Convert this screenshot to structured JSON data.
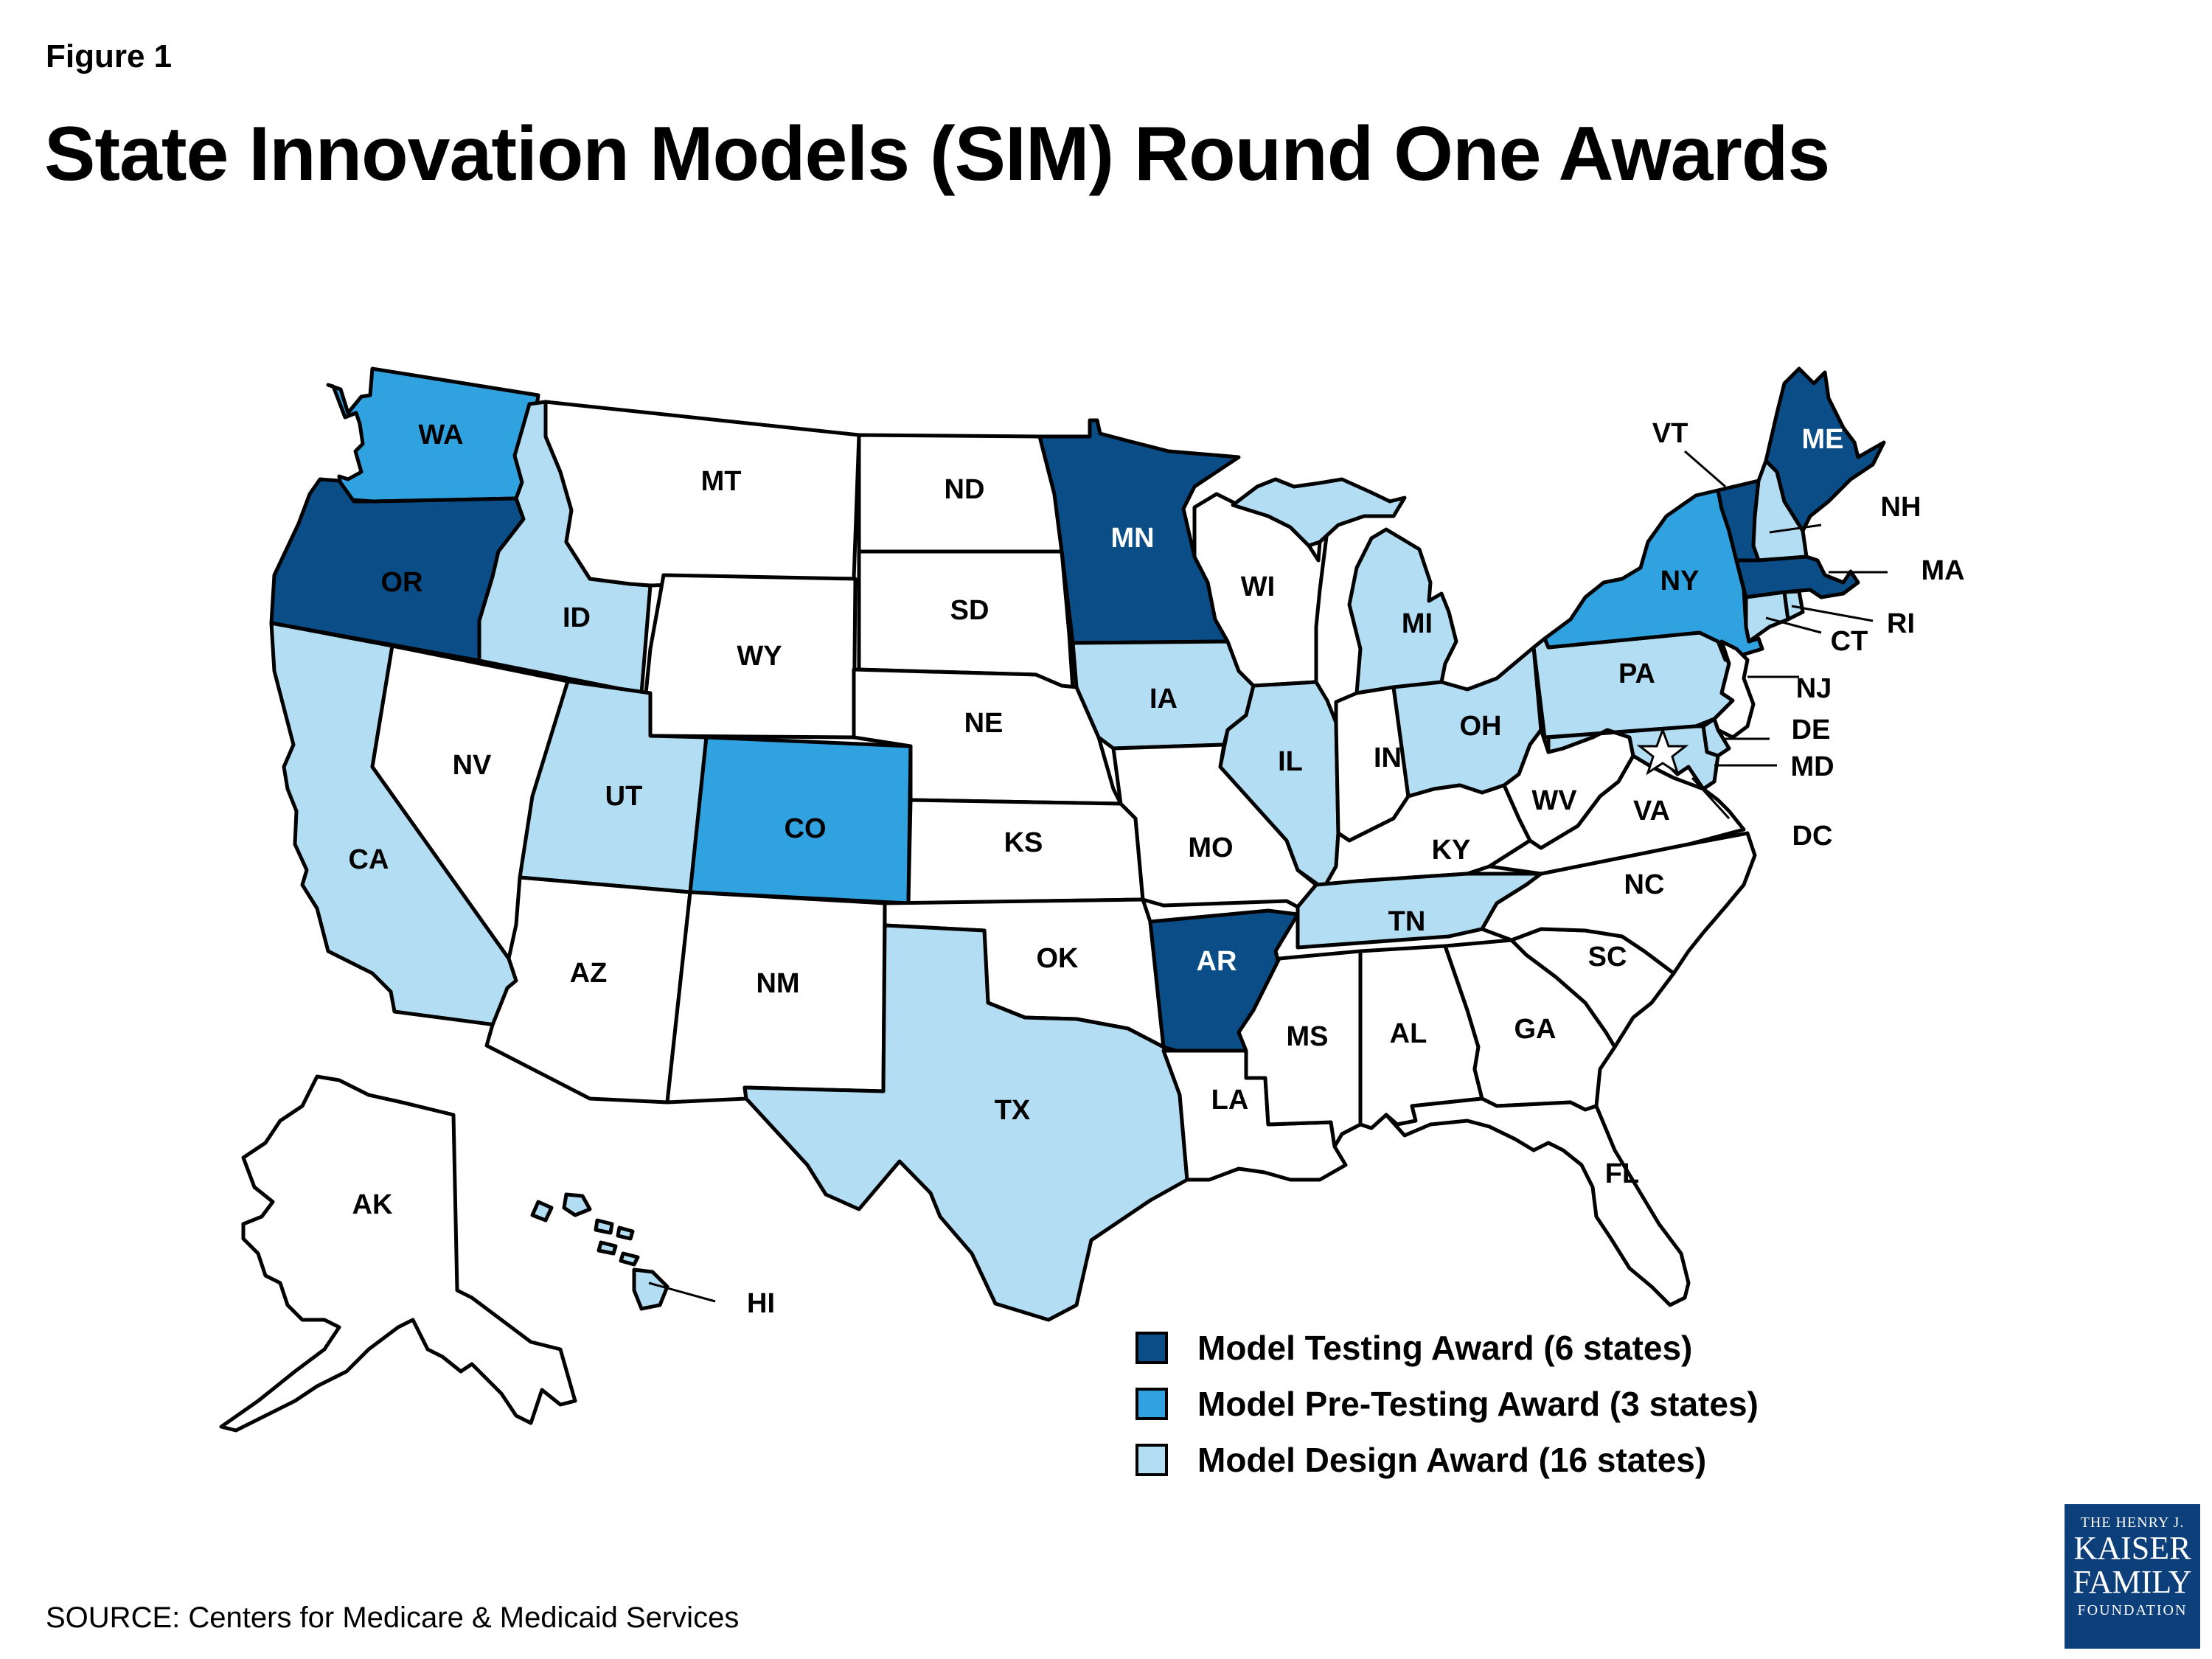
{
  "figure_label": "Figure 1",
  "title": "State Innovation Models (SIM) Round One Awards",
  "source": "SOURCE: Centers for Medicare & Medicaid Services",
  "logo": {
    "line1": "THE HENRY J.",
    "line2": "KAISER",
    "line3": "FAMILY",
    "line4": "FOUNDATION"
  },
  "colors": {
    "model_testing": "#0b4d87",
    "model_pre_testing": "#31a2e0",
    "model_design": "#b3ddf2",
    "none": "#ffffff"
  },
  "legend": [
    {
      "key": "model_testing",
      "label": "Model Testing Award (6 states)"
    },
    {
      "key": "model_pre_testing",
      "label": "Model Pre-Testing Award (3 states)"
    },
    {
      "key": "model_design",
      "label": "Model Design Award (16 states)"
    }
  ],
  "states": {
    "WA": {
      "label": "WA",
      "award": "model_pre_testing"
    },
    "OR": {
      "label": "OR",
      "award": "model_testing"
    },
    "CA": {
      "label": "CA",
      "award": "model_design"
    },
    "ID": {
      "label": "ID",
      "award": "model_design"
    },
    "NV": {
      "label": "NV",
      "award": "none"
    },
    "MT": {
      "label": "MT",
      "award": "none"
    },
    "WY": {
      "label": "WY",
      "award": "none"
    },
    "UT": {
      "label": "UT",
      "award": "model_design"
    },
    "AZ": {
      "label": "AZ",
      "award": "none"
    },
    "CO": {
      "label": "CO",
      "award": "model_pre_testing"
    },
    "NM": {
      "label": "NM",
      "award": "none"
    },
    "ND": {
      "label": "ND",
      "award": "none"
    },
    "SD": {
      "label": "SD",
      "award": "none"
    },
    "NE": {
      "label": "NE",
      "award": "none"
    },
    "KS": {
      "label": "KS",
      "award": "none"
    },
    "OK": {
      "label": "OK",
      "award": "none"
    },
    "TX": {
      "label": "TX",
      "award": "model_design"
    },
    "MN": {
      "label": "MN",
      "award": "model_testing"
    },
    "IA": {
      "label": "IA",
      "award": "model_design"
    },
    "MO": {
      "label": "MO",
      "award": "none"
    },
    "AR": {
      "label": "AR",
      "award": "model_testing"
    },
    "LA": {
      "label": "LA",
      "award": "none"
    },
    "WI": {
      "label": "WI",
      "award": "none"
    },
    "IL": {
      "label": "IL",
      "award": "model_design"
    },
    "MI": {
      "label": "MI",
      "award": "model_design"
    },
    "IN": {
      "label": "IN",
      "award": "none"
    },
    "OH": {
      "label": "OH",
      "award": "model_design"
    },
    "KY": {
      "label": "KY",
      "award": "none"
    },
    "TN": {
      "label": "TN",
      "award": "model_design"
    },
    "MS": {
      "label": "MS",
      "award": "none"
    },
    "AL": {
      "label": "AL",
      "award": "none"
    },
    "GA": {
      "label": "GA",
      "award": "none"
    },
    "FL": {
      "label": "FL",
      "award": "none"
    },
    "SC": {
      "label": "SC",
      "award": "none"
    },
    "NC": {
      "label": "NC",
      "award": "none"
    },
    "VA": {
      "label": "VA",
      "award": "none"
    },
    "WV": {
      "label": "WV",
      "award": "none"
    },
    "PA": {
      "label": "PA",
      "award": "model_design"
    },
    "NY": {
      "label": "NY",
      "award": "model_pre_testing"
    },
    "VT": {
      "label": "VT",
      "award": "model_testing"
    },
    "NH": {
      "label": "NH",
      "award": "model_design"
    },
    "ME": {
      "label": "ME",
      "award": "model_testing"
    },
    "MA": {
      "label": "MA",
      "award": "model_testing"
    },
    "RI": {
      "label": "RI",
      "award": "model_design"
    },
    "CT": {
      "label": "CT",
      "award": "model_design"
    },
    "NJ": {
      "label": "NJ",
      "award": "none"
    },
    "DE": {
      "label": "DE",
      "award": "model_design"
    },
    "MD": {
      "label": "MD",
      "award": "model_design"
    },
    "DC": {
      "label": "DC",
      "award": "none"
    },
    "AK": {
      "label": "AK",
      "award": "none"
    },
    "HI": {
      "label": "HI",
      "award": "model_design"
    }
  }
}
